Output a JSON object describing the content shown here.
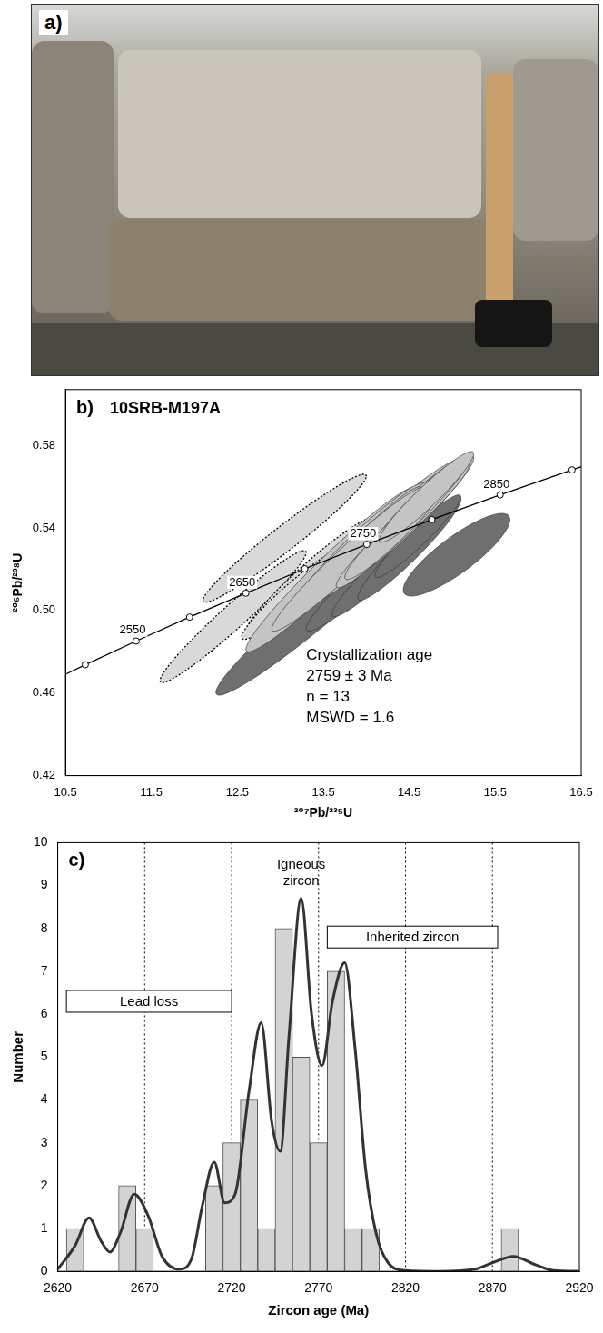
{
  "image_panel": {
    "label": "a)"
  },
  "chart_data": [
    {
      "type": "scatter",
      "label": "b)",
      "title": "10SRB-M197A",
      "x_label": "²⁰⁷Pb/²³⁵U",
      "y_label": "²⁰⁶Pb/²³⁸U",
      "xlim": [
        10.5,
        16.5
      ],
      "xticks": [
        10.5,
        11.5,
        12.5,
        13.5,
        14.5,
        15.5,
        16.5
      ],
      "ylim": [
        0.42,
        0.607
      ],
      "yticks": [
        0.42,
        0.46,
        {
          "value": 0.5,
          "label": "0.50"
        },
        0.54,
        0.58
      ],
      "grid": false,
      "concordia": {
        "x": [
          10.166,
          10.73,
          11.322,
          11.944,
          12.598,
          13.284,
          14.005,
          14.762,
          15.557,
          16.393,
          17.27
        ],
        "values": [
          0.4624,
          0.4737,
          0.4852,
          0.4968,
          0.5084,
          0.5202,
          0.532,
          0.544,
          0.556,
          0.5681,
          0.5803
        ],
        "labels": [
          null,
          null,
          "2550",
          null,
          "2650",
          null,
          "2750",
          null,
          "2850",
          null,
          null
        ],
        "color": "#000000",
        "marker": "circle"
      },
      "ellipses": [
        {
          "color": "#d9d9d9",
          "line_style": "dotted",
          "items": [
            {
              "x": 13.05,
              "y": 0.535,
              "sx": 0.95,
              "sy": 0.031,
              "rho": 0.97
            },
            {
              "x": 12.45,
              "y": 0.497,
              "sx": 0.85,
              "sy": 0.032,
              "rho": 0.97
            },
            {
              "x": 13.35,
              "y": 0.517,
              "sx": 0.75,
              "sy": 0.028,
              "rho": 0.96
            },
            {
              "x": 13.7,
              "y": 0.526,
              "sx": 0.65,
              "sy": 0.025,
              "rho": 0.96
            },
            {
              "x": 13.15,
              "y": 0.508,
              "sx": 0.6,
              "sy": 0.022,
              "rho": 0.95
            }
          ]
        },
        {
          "color": "#6f6f6f",
          "line_style": "solid",
          "items": [
            {
              "x": 13.5,
              "y": 0.503,
              "sx": 1.25,
              "sy": 0.044,
              "rho": 0.97
            },
            {
              "x": 14.1,
              "y": 0.52,
              "sx": 0.8,
              "sy": 0.03,
              "rho": 0.96
            },
            {
              "x": 14.3,
              "y": 0.525,
              "sx": 0.7,
              "sy": 0.028,
              "rho": 0.96
            },
            {
              "x": 14.5,
              "y": 0.53,
              "sx": 0.6,
              "sy": 0.025,
              "rho": 0.95
            },
            {
              "x": 14.6,
              "y": 0.536,
              "sx": 0.5,
              "sy": 0.02,
              "rho": 0.95
            },
            {
              "x": 15.05,
              "y": 0.527,
              "sx": 0.62,
              "sy": 0.02,
              "rho": 0.85
            }
          ]
        },
        {
          "color": "#c4c4c4",
          "line_style": "solid",
          "items": [
            {
              "x": 13.6,
              "y": 0.52,
              "sx": 1.0,
              "sy": 0.04,
              "rho": 0.97
            },
            {
              "x": 14.1,
              "y": 0.535,
              "sx": 1.0,
              "sy": 0.038,
              "rho": 0.97
            },
            {
              "x": 14.3,
              "y": 0.54,
              "sx": 0.9,
              "sy": 0.035,
              "rho": 0.97
            },
            {
              "x": 13.9,
              "y": 0.53,
              "sx": 0.8,
              "sy": 0.032,
              "rho": 0.96
            },
            {
              "x": 14.5,
              "y": 0.545,
              "sx": 0.75,
              "sy": 0.03,
              "rho": 0.96
            },
            {
              "x": 14.2,
              "y": 0.538,
              "sx": 0.7,
              "sy": 0.028,
              "rho": 0.96
            },
            {
              "x": 14.0,
              "y": 0.533,
              "sx": 0.65,
              "sy": 0.027,
              "rho": 0.96
            },
            {
              "x": 14.4,
              "y": 0.542,
              "sx": 0.8,
              "sy": 0.03,
              "rho": 0.96
            },
            {
              "x": 13.8,
              "y": 0.525,
              "sx": 0.9,
              "sy": 0.035,
              "rho": 0.97
            },
            {
              "x": 14.6,
              "y": 0.55,
              "sx": 0.6,
              "sy": 0.025,
              "rho": 0.95
            },
            {
              "x": 14.15,
              "y": 0.531,
              "sx": 0.5,
              "sy": 0.02,
              "rho": 0.95
            },
            {
              "x": 14.3,
              "y": 0.537,
              "sx": 0.55,
              "sy": 0.022,
              "rho": 0.95
            },
            {
              "x": 14.7,
              "y": 0.555,
              "sx": 0.55,
              "sy": 0.022,
              "rho": 0.95
            }
          ]
        }
      ],
      "annotations": [
        "Crystallization age",
        "2759 ± 3 Ma",
        "n = 13",
        "MSWD = 1.6"
      ]
    },
    {
      "type": "histogram",
      "label": "c)",
      "x_label": "Zircon age (Ma)",
      "y_label": "Number",
      "xlim": [
        2620,
        2920
      ],
      "xticks": [
        2620,
        2670,
        2720,
        2770,
        2820,
        2870,
        2920
      ],
      "ylim": [
        0,
        10
      ],
      "yticks": [
        0,
        1,
        2,
        3,
        4,
        5,
        6,
        7,
        8,
        9,
        10
      ],
      "grid": "x",
      "color": "#d3d3d3",
      "bins": [
        2625,
        2635,
        2645,
        2655,
        2665,
        2675,
        2685,
        2695,
        2705,
        2715,
        2725,
        2735,
        2745,
        2755,
        2765,
        2775,
        2785,
        2795,
        2805,
        2815,
        2825,
        2835,
        2845,
        2855,
        2865,
        2875,
        2885
      ],
      "values": [
        1,
        0,
        0,
        2,
        1,
        0,
        0,
        0,
        2,
        3,
        4,
        1,
        8,
        5,
        3,
        7,
        1,
        1,
        0,
        0,
        0,
        0,
        0,
        0,
        0,
        1
      ],
      "curve": {
        "x": [
          2620,
          2630,
          2638,
          2645,
          2650,
          2656,
          2664,
          2672,
          2680,
          2690,
          2697,
          2703,
          2710,
          2716,
          2722,
          2730,
          2737,
          2743,
          2748,
          2753,
          2760,
          2766,
          2772,
          2778,
          2785,
          2791,
          2797,
          2803,
          2810,
          2820,
          2840,
          2860,
          2870,
          2882,
          2895,
          2905,
          2920
        ],
        "values": [
          0.05,
          0.6,
          1.25,
          0.7,
          0.45,
          0.9,
          1.8,
          1.3,
          0.35,
          0.05,
          0.3,
          1.5,
          2.55,
          1.6,
          1.8,
          4.2,
          5.8,
          3.5,
          2.8,
          5.5,
          8.7,
          6,
          4.8,
          6.3,
          7.2,
          5.2,
          2.4,
          0.9,
          0.2,
          0.02,
          0,
          0.05,
          0.2,
          0.35,
          0.15,
          0.02,
          0
        ],
        "color": "#333333"
      },
      "annotations": [
        {
          "text": "Lead loss",
          "x": [
            2625,
            2720
          ],
          "y": 6.3
        },
        {
          "text": "Igneous zircon",
          "x": 2760,
          "y": 9.3
        },
        {
          "text": "Inherited zircon",
          "x": [
            2775,
            2873
          ],
          "y": 7.8
        }
      ]
    }
  ]
}
